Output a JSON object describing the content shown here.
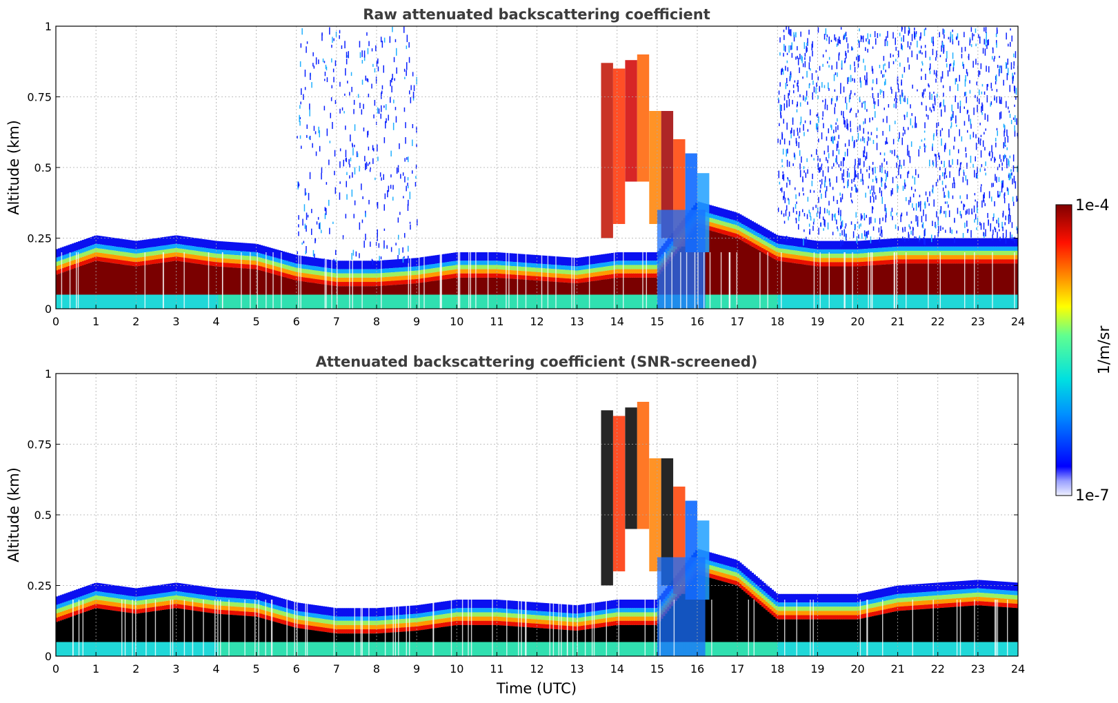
{
  "figure": {
    "xlabel": "Time (UTC)",
    "colorbar": {
      "label": "1/m/sr",
      "max_label": "1e-4",
      "min_label": "1e-7",
      "scale": "log"
    }
  },
  "chart_data": [
    {
      "type": "heatmap",
      "title": "Raw attenuated backscattering coefficient",
      "xlabel": "",
      "ylabel": "Altitude (km)",
      "xlim": [
        0,
        24
      ],
      "ylim": [
        0,
        1
      ],
      "x_ticks": [
        "0",
        "1",
        "2",
        "3",
        "4",
        "5",
        "6",
        "7",
        "8",
        "9",
        "10",
        "11",
        "12",
        "13",
        "14",
        "15",
        "16",
        "17",
        "18",
        "19",
        "20",
        "21",
        "22",
        "23",
        "24"
      ],
      "y_ticks": [
        "0",
        "0.25",
        "0.5",
        "0.75",
        "1"
      ],
      "y_tick_values": [
        0,
        0.25,
        0.5,
        0.75,
        1
      ],
      "grid": true,
      "boundary_layer_top_km": [
        [
          0,
          0.21
        ],
        [
          1,
          0.26
        ],
        [
          2,
          0.24
        ],
        [
          3,
          0.26
        ],
        [
          4,
          0.24
        ],
        [
          5,
          0.23
        ],
        [
          6,
          0.19
        ],
        [
          7,
          0.17
        ],
        [
          8,
          0.17
        ],
        [
          9,
          0.18
        ],
        [
          10,
          0.2
        ],
        [
          11,
          0.2
        ],
        [
          12,
          0.19
        ],
        [
          13,
          0.18
        ],
        [
          14,
          0.2
        ],
        [
          15,
          0.2
        ],
        [
          16,
          0.38
        ],
        [
          17,
          0.34
        ],
        [
          18,
          0.26
        ],
        [
          19,
          0.24
        ],
        [
          20,
          0.24
        ],
        [
          21,
          0.25
        ],
        [
          22,
          0.25
        ],
        [
          23,
          0.25
        ],
        [
          24,
          0.25
        ]
      ],
      "aerosol_plume": {
        "time_start": 13.5,
        "time_end": 16.3,
        "max_altitude_km": 0.9
      },
      "noise_regions": [
        [
          6,
          9,
          1.0
        ],
        [
          18,
          24,
          1.0
        ]
      ]
    },
    {
      "type": "heatmap",
      "title": "Attenuated backscattering coefficient (SNR-screened)",
      "xlabel": "Time (UTC)",
      "ylabel": "Altitude (km)",
      "xlim": [
        0,
        24
      ],
      "ylim": [
        0,
        1
      ],
      "x_ticks": [
        "0",
        "1",
        "2",
        "3",
        "4",
        "5",
        "6",
        "7",
        "8",
        "9",
        "10",
        "11",
        "12",
        "13",
        "14",
        "15",
        "16",
        "17",
        "18",
        "19",
        "20",
        "21",
        "22",
        "23",
        "24"
      ],
      "y_ticks": [
        "0",
        "0.25",
        "0.5",
        "0.75",
        "1"
      ],
      "y_tick_values": [
        0,
        0.25,
        0.5,
        0.75,
        1
      ],
      "grid": true,
      "boundary_layer_top_km": [
        [
          0,
          0.21
        ],
        [
          1,
          0.26
        ],
        [
          2,
          0.24
        ],
        [
          3,
          0.26
        ],
        [
          4,
          0.24
        ],
        [
          5,
          0.23
        ],
        [
          6,
          0.19
        ],
        [
          7,
          0.17
        ],
        [
          8,
          0.17
        ],
        [
          9,
          0.18
        ],
        [
          10,
          0.2
        ],
        [
          11,
          0.2
        ],
        [
          12,
          0.19
        ],
        [
          13,
          0.18
        ],
        [
          14,
          0.2
        ],
        [
          15,
          0.2
        ],
        [
          16,
          0.38
        ],
        [
          17,
          0.34
        ],
        [
          18,
          0.22
        ],
        [
          19,
          0.22
        ],
        [
          20,
          0.22
        ],
        [
          21,
          0.25
        ],
        [
          22,
          0.26
        ],
        [
          23,
          0.27
        ],
        [
          24,
          0.26
        ]
      ],
      "aerosol_plume": {
        "time_start": 13.5,
        "time_end": 16.3,
        "max_altitude_km": 0.9
      },
      "noise_regions": []
    }
  ]
}
